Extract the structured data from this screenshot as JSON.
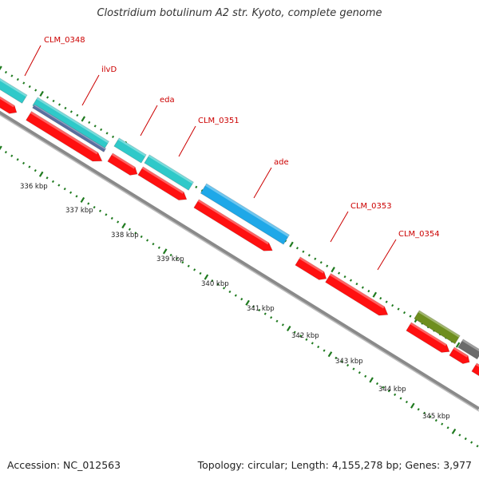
{
  "title": "Clostridium botulinum A2 str. Kyoto, complete genome",
  "footer": {
    "accession": "Accession: NC_012563",
    "summary": "Topology: circular; Length: 4,155,278 bp; Genes: 3,977"
  },
  "colors": {
    "forward_cds": "#2fc9c9",
    "forward_cds_highlight": "#1fa8e8",
    "forward_cds_alt": "#5a6fa0",
    "reverse_cds": "#ff1010",
    "olive_feature": "#6e8e1e",
    "gray_feature": "#6b6b6b",
    "backbone": "#8a8a8a",
    "tick": "#1f7a1f",
    "label": "#cc0000"
  },
  "gene_labels": [
    {
      "id": "CLM_0348",
      "text": "CLM_0348"
    },
    {
      "id": "ilvD",
      "text": "ilvD"
    },
    {
      "id": "eda",
      "text": "eda"
    },
    {
      "id": "CLM_0351",
      "text": "CLM_0351"
    },
    {
      "id": "ade",
      "text": "ade"
    },
    {
      "id": "CLM_0353",
      "text": "CLM_0353"
    },
    {
      "id": "CLM_0354",
      "text": "CLM_0354"
    }
  ],
  "scale_labels": [
    "336 kbp",
    "337 kbp",
    "338 kbp",
    "339 kbp",
    "340 kbp",
    "341 kbp",
    "342 kbp",
    "343 kbp",
    "344 kbp",
    "345 kbp"
  ]
}
